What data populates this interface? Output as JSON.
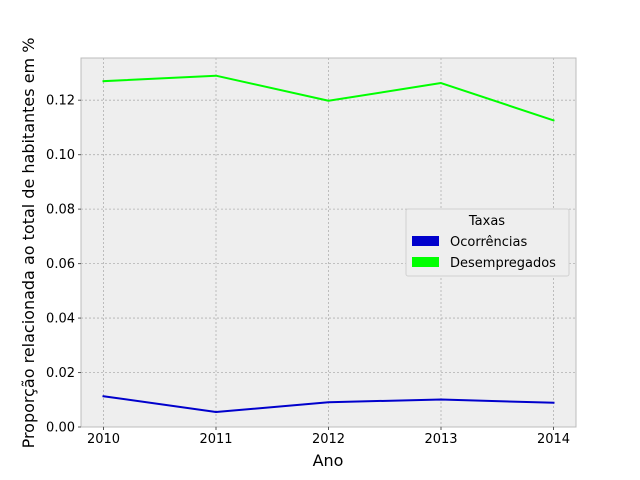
{
  "chart_data": {
    "type": "line",
    "title": "",
    "xlabel": "Ano",
    "ylabel": "Proporção relacionada ao total de habitantes em %",
    "x": [
      2010,
      2011,
      2012,
      2013,
      2014
    ],
    "x_ticks": [
      "2010",
      "2011",
      "2012",
      "2013",
      "2014"
    ],
    "y_ticks": [
      "0.00",
      "0.02",
      "0.04",
      "0.06",
      "0.08",
      "0.10",
      "0.12"
    ],
    "y_tick_values": [
      0.0,
      0.02,
      0.04,
      0.06,
      0.08,
      0.1,
      0.12
    ],
    "xlim": [
      2009.8,
      2014.2
    ],
    "ylim": [
      0.0,
      0.1355
    ],
    "grid": true,
    "grid_style": "dotted",
    "legend": {
      "title": "Taxas",
      "placement": "center-right"
    },
    "series": [
      {
        "name": "Ocorrências",
        "color": "#0000cc",
        "values": [
          0.0113,
          0.0055,
          0.0091,
          0.0101,
          0.0089
        ]
      },
      {
        "name": "Desempregados",
        "color": "#00ff00",
        "values": [
          0.127,
          0.129,
          0.1198,
          0.1263,
          0.1126
        ]
      }
    ]
  },
  "colors": {
    "plot_background": "#eeeeee",
    "grid": "#b0b0b0",
    "axes_edge": "#bcbcbc"
  }
}
